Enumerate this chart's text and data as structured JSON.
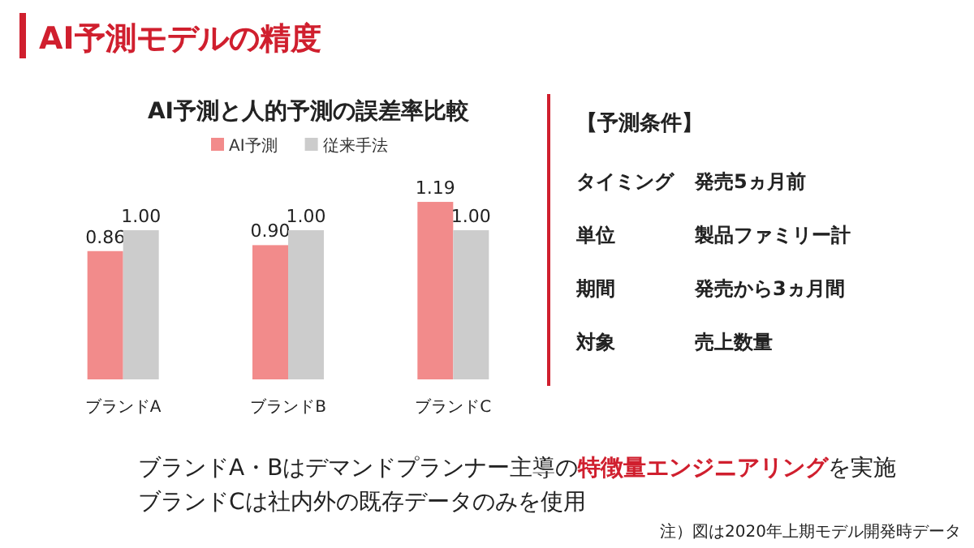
{
  "chart_data": [
    {
      "type": "other",
      "title": "AI予測モデルの精度",
      "annotations": [
        "ブランドA・Bはデマンドプランナー主導の",
        "特徴量エンジニアリング",
        "を実施",
        "ブランドCは社内外の既存データのみを使用",
        "注）図は2020年上期モデル開発時データ"
      ]
    },
    {
      "type": "bar",
      "title": "AI予測と人的予測の誤差率比較",
      "categories": [
        "ブランドA",
        "ブランドB",
        "ブランドC"
      ],
      "legend": "top",
      "series": [
        {
          "name": "AI予測",
          "color": "#f28b8b",
          "values": [
            0.86,
            0.9,
            1.19
          ],
          "value_labels": [
            "0.86",
            "0.90",
            "1.19"
          ]
        },
        {
          "name": "従来手法",
          "color": "#cccccc",
          "values": [
            1.0,
            1.0,
            1.0
          ],
          "value_labels": [
            "1.00",
            "1.00",
            "1.00"
          ]
        }
      ]
    },
    {
      "type": "other",
      "title": "【予測条件】",
      "annotations": [
        "タイミング",
        "発売5ヵ月前",
        "単位",
        "製品ファミリー計",
        "期間",
        "発売から3ヵ月間",
        "対象",
        "売上数量"
      ]
    }
  ]
}
